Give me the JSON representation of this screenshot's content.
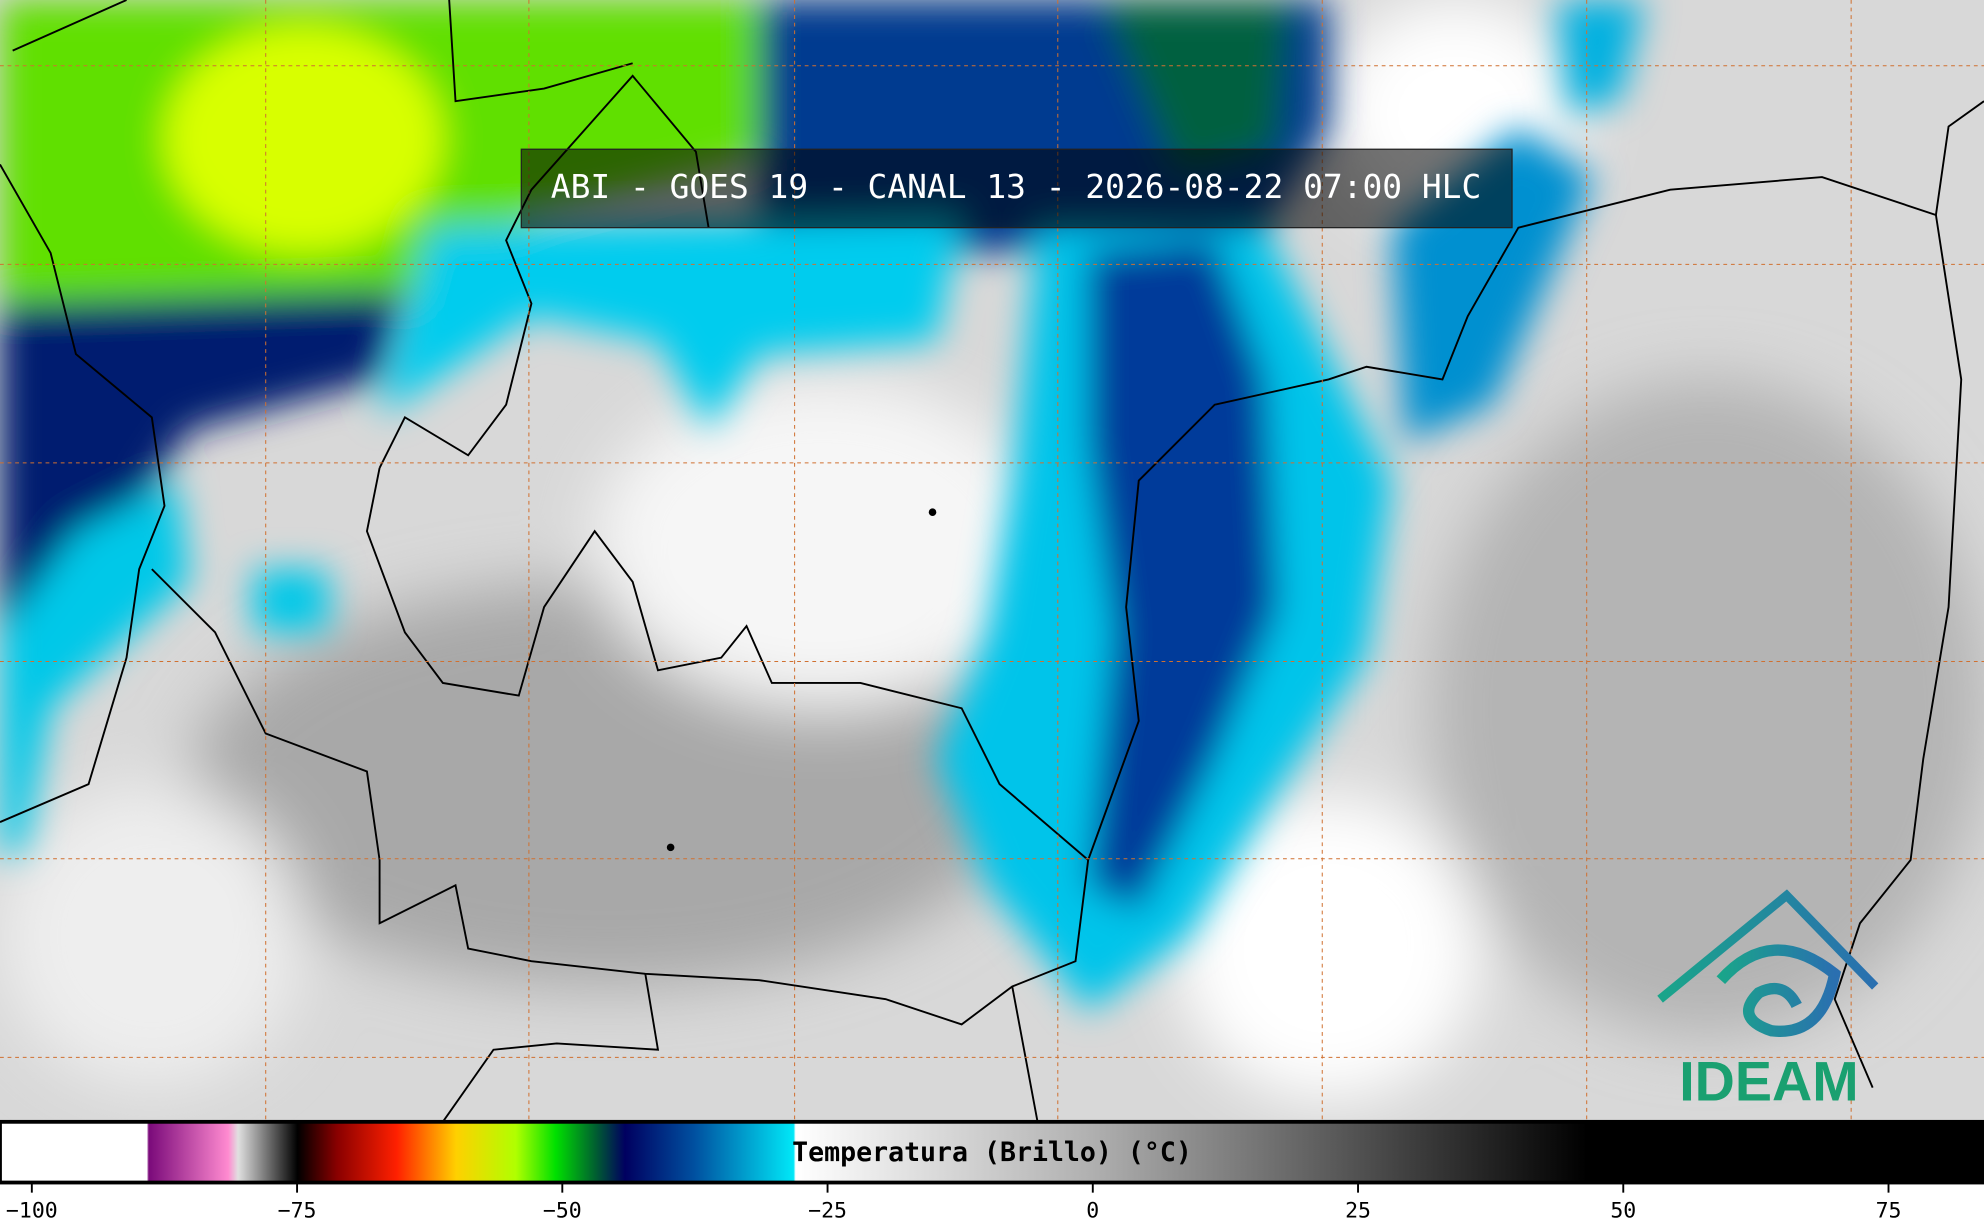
{
  "title": "ABI - GOES 19 - CANAL 13 - 2026-08-22 07:00 HLC",
  "colorbar": {
    "label": "Temperatura (Brillo) (°C)",
    "xlim": [
      -103,
      84
    ],
    "xticks": [
      {
        "value": -100,
        "label": "−100"
      },
      {
        "value": -75,
        "label": "−75"
      },
      {
        "value": -50,
        "label": "−50"
      },
      {
        "value": -25,
        "label": "−25"
      },
      0,
      25,
      50,
      75
    ]
  },
  "logo": {
    "text": "IDEAM"
  }
}
